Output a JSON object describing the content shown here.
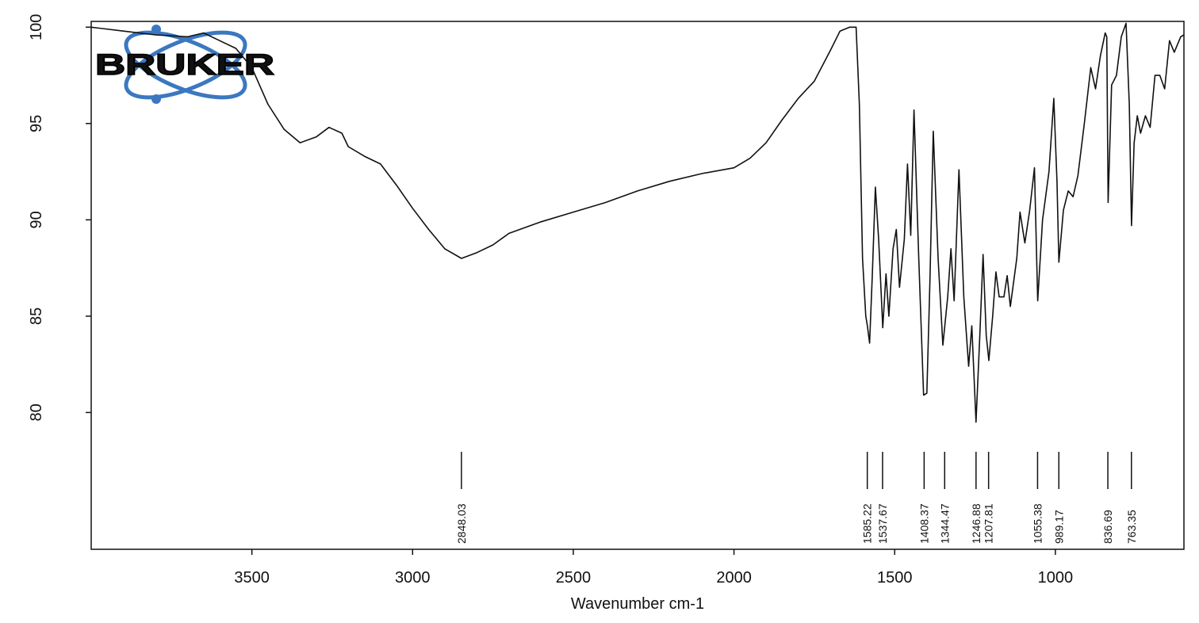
{
  "chart_data": {
    "type": "line",
    "logo": "BRUKER",
    "x_label": "Wavenumber cm-1",
    "xlim": [
      4000,
      600
    ],
    "ylim": [
      72.9,
      100.3
    ],
    "xticks": [
      3500,
      3000,
      2500,
      2000,
      1500,
      1000
    ],
    "yticks": [
      80,
      85,
      90,
      95,
      100
    ],
    "peaks": [
      2848.03,
      1585.22,
      1537.67,
      1408.37,
      1344.47,
      1246.88,
      1207.81,
      1055.38,
      989.17,
      836.69,
      763.35
    ],
    "series": [
      {
        "color": "#111111",
        "x": [
          4000,
          3900,
          3800,
          3700,
          3650,
          3600,
          3550,
          3500,
          3450,
          3400,
          3350,
          3300,
          3260,
          3220,
          3200,
          3150,
          3100,
          3050,
          3000,
          2950,
          2900,
          2848,
          2800,
          2750,
          2700,
          2600,
          2500,
          2400,
          2300,
          2200,
          2100,
          2000,
          1950,
          1900,
          1850,
          1800,
          1750,
          1700,
          1670,
          1640,
          1620,
          1610,
          1600,
          1590,
          1585,
          1578,
          1570,
          1560,
          1550,
          1540,
          1537,
          1527,
          1518,
          1505,
          1495,
          1485,
          1470,
          1460,
          1450,
          1440,
          1425,
          1410,
          1400,
          1390,
          1380,
          1365,
          1350,
          1335,
          1325,
          1315,
          1300,
          1285,
          1270,
          1260,
          1247,
          1235,
          1225,
          1215,
          1207,
          1195,
          1185,
          1175,
          1160,
          1150,
          1140,
          1120,
          1110,
          1095,
          1080,
          1065,
          1055,
          1040,
          1020,
          1005,
          995,
          989,
          975,
          960,
          945,
          930,
          910,
          890,
          875,
          860,
          845,
          840,
          836,
          825,
          810,
          795,
          780,
          770,
          763,
          755,
          745,
          735,
          720,
          705,
          690,
          675,
          660,
          645,
          630,
          610,
          600
        ],
        "values": [
          100,
          99.8,
          99.6,
          99.5,
          99.7,
          99.3,
          98.9,
          97.9,
          96.0,
          94.7,
          94.0,
          94.3,
          94.8,
          94.5,
          93.8,
          93.3,
          92.9,
          91.8,
          90.6,
          89.5,
          88.5,
          88.0,
          88.3,
          88.7,
          89.3,
          89.9,
          90.4,
          90.9,
          91.5,
          92.0,
          92.4,
          92.7,
          93.2,
          94.0,
          95.2,
          96.3,
          97.2,
          98.8,
          99.8,
          100.0,
          100.0,
          96.0,
          88.0,
          85.0,
          84.5,
          83.6,
          87.0,
          91.7,
          89.0,
          85.5,
          84.4,
          87.2,
          85.0,
          88.5,
          89.5,
          86.5,
          89.0,
          92.9,
          89.2,
          95.7,
          88.0,
          80.9,
          81.0,
          87.0,
          94.6,
          88.0,
          83.5,
          86.0,
          88.5,
          85.8,
          92.6,
          86.0,
          82.4,
          84.5,
          79.5,
          84.0,
          88.2,
          84.0,
          82.7,
          85.0,
          87.3,
          86.0,
          86.0,
          87.1,
          85.5,
          88.0,
          90.4,
          88.8,
          90.5,
          92.7,
          85.8,
          90.0,
          92.5,
          96.3,
          92.0,
          87.8,
          90.5,
          91.5,
          91.2,
          92.3,
          95.0,
          97.9,
          96.8,
          98.5,
          99.7,
          99.5,
          90.9,
          97.0,
          97.5,
          99.5,
          100.2,
          96.0,
          89.7,
          94.0,
          95.4,
          94.5,
          95.4,
          94.8,
          97.5,
          97.5,
          96.8,
          99.3,
          98.7,
          99.5,
          99.6
        ]
      }
    ]
  }
}
